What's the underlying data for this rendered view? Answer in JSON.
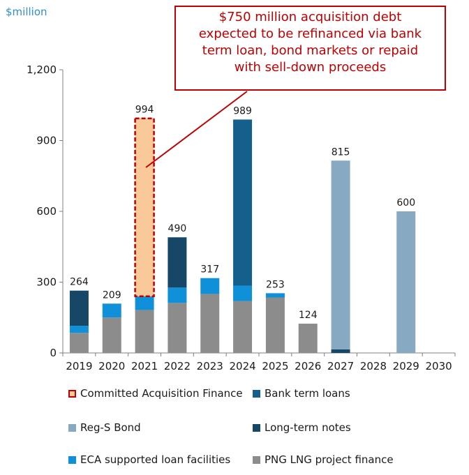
{
  "unit_label": "$million",
  "callout_lines": [
    "$750 million acquisition debt",
    "expected to be refinanced via bank",
    "term loan, bond markets or repaid",
    "with sell-down proceeds"
  ],
  "chart_data": {
    "type": "bar",
    "stacked": true,
    "categories": [
      "2019",
      "2020",
      "2021",
      "2022",
      "2023",
      "2024",
      "2025",
      "2026",
      "2027",
      "2028",
      "2029",
      "2030"
    ],
    "ylim": [
      0,
      1200
    ],
    "yticks": [
      0,
      300,
      600,
      900,
      1200
    ],
    "ytick_labels": [
      "0",
      "300",
      "600",
      "900",
      "1,200"
    ],
    "grid": false,
    "legend_position": "bottom",
    "totals": [
      264,
      209,
      994,
      490,
      317,
      989,
      253,
      124,
      815,
      null,
      600,
      null
    ],
    "series": [
      {
        "name": "PNG LNG project finance",
        "color": "#8c8c8c",
        "values": [
          85,
          150,
          182,
          212,
          250,
          220,
          235,
          124,
          0,
          0,
          0,
          0
        ]
      },
      {
        "name": "ECA supported loan facilities",
        "color": "#0f90d8",
        "values": [
          30,
          59,
          58,
          65,
          67,
          65,
          18,
          0,
          0,
          0,
          0,
          0
        ]
      },
      {
        "name": "Long-term notes",
        "color": "#174766",
        "values": [
          149,
          0,
          0,
          213,
          0,
          0,
          0,
          0,
          15,
          0,
          0,
          0
        ]
      },
      {
        "name": "Bank term loans",
        "color": "#155f8c",
        "values": [
          0,
          0,
          0,
          0,
          0,
          704,
          0,
          0,
          0,
          0,
          0,
          0
        ]
      },
      {
        "name": "Reg-S Bond",
        "color": "#87a9c1",
        "values": [
          0,
          0,
          0,
          0,
          0,
          0,
          0,
          0,
          800,
          0,
          600,
          0
        ]
      },
      {
        "name": "Committed Acquisition Finance",
        "color": "#fac999",
        "border": "#c00000",
        "values": [
          0,
          0,
          754,
          0,
          0,
          0,
          0,
          0,
          0,
          0,
          0,
          0
        ]
      }
    ],
    "legend_order": [
      "Committed Acquisition Finance",
      "Bank term loans",
      "Reg-S Bond",
      "Long-term notes",
      "ECA supported loan facilities",
      "PNG LNG project finance"
    ]
  }
}
